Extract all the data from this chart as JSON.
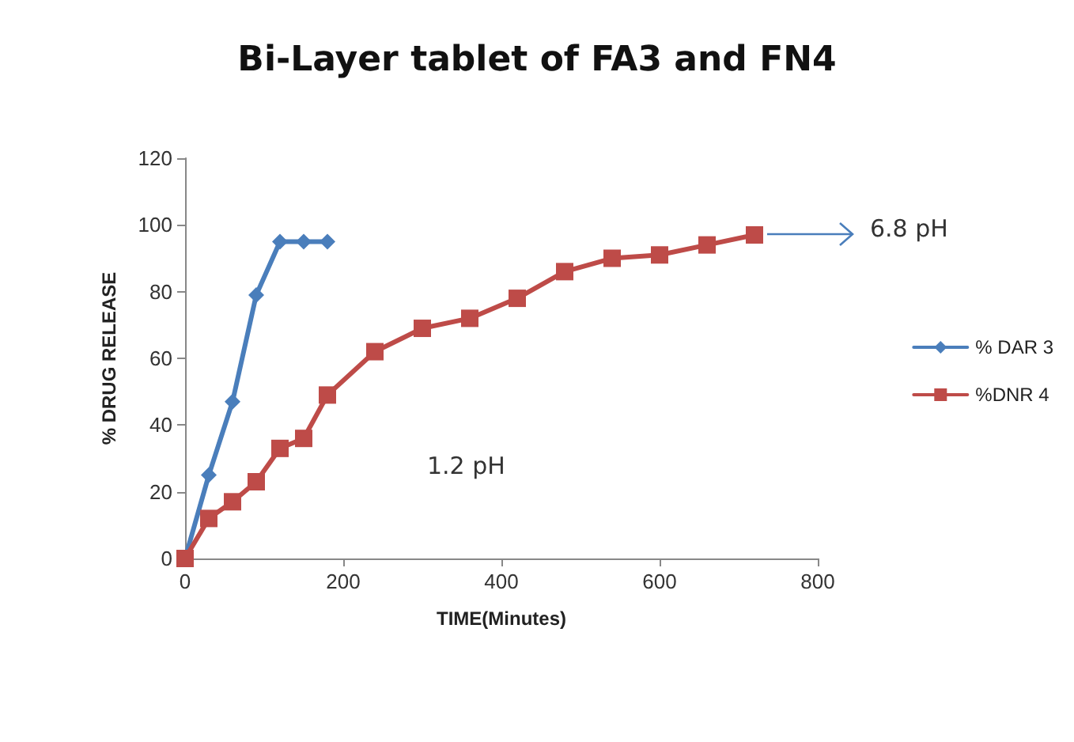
{
  "chart_data": {
    "type": "line",
    "title": "Bi-Layer tablet of FA3 and FN4",
    "xlabel": "TIME(Minutes)",
    "ylabel": "% DRUG RELEASE",
    "annotations": [
      "1.2 pH",
      "6.8 pH"
    ],
    "series": [
      {
        "name": "% DAR 3",
        "color": "#4a7ebb",
        "marker": "diamond",
        "x": [
          0,
          30,
          60,
          90,
          120,
          150,
          180
        ],
        "values": [
          0,
          25,
          47,
          79,
          95,
          95,
          95
        ]
      },
      {
        "name": "%DNR 4",
        "color": "#be4b48",
        "marker": "square",
        "x": [
          0,
          30,
          60,
          90,
          120,
          150,
          180,
          240,
          300,
          360,
          420,
          480,
          540,
          600,
          660,
          720
        ],
        "values": [
          0,
          12,
          17,
          23,
          33,
          36,
          49,
          62,
          69,
          72,
          78,
          86,
          90,
          91,
          94,
          97
        ]
      }
    ],
    "xlim": [
      0,
      800
    ],
    "xticks": [
      0,
      200,
      400,
      600,
      800
    ],
    "ylim": [
      0,
      120
    ],
    "yticks": [
      0,
      20,
      40,
      60,
      80,
      100,
      120
    ],
    "grid": false,
    "legend": "right"
  }
}
